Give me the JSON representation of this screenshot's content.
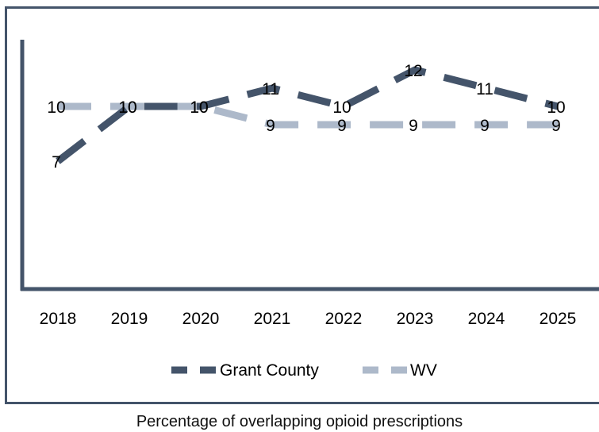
{
  "chart_data": {
    "type": "line",
    "title": "",
    "xlabel": "",
    "ylabel": "",
    "categories": [
      "2018",
      "2019",
      "2020",
      "2021",
      "2022",
      "2023",
      "2024",
      "2025"
    ],
    "series": [
      {
        "name": "Grant County",
        "values": [
          7,
          10,
          10,
          11,
          10,
          12,
          11,
          10
        ],
        "color": "#44546a",
        "dash": true
      },
      {
        "name": "WV",
        "values": [
          10,
          10,
          10,
          9,
          9,
          9,
          9,
          9
        ],
        "color": "#adb9ca",
        "dash": true
      }
    ],
    "ylim": [
      0,
      17
    ],
    "grid": false,
    "legend_position": "bottom",
    "data_labels": true
  },
  "caption": "Percentage of overlapping opioid prescriptions"
}
